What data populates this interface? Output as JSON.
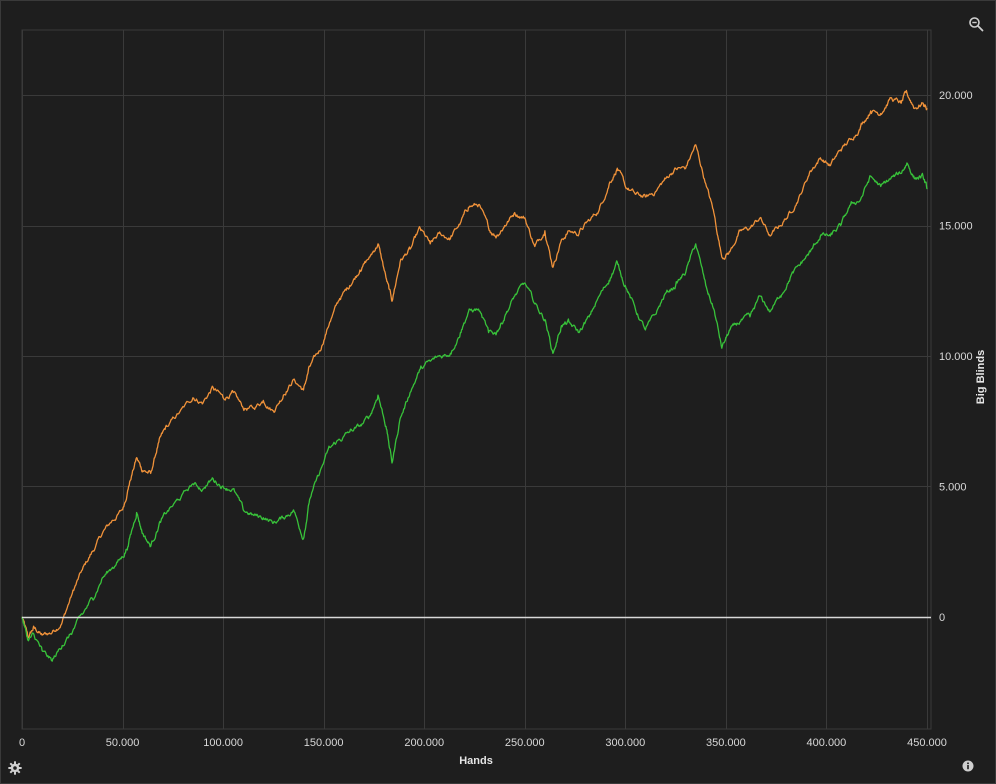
{
  "colors": {
    "background": "#1e1e1e",
    "grid": "#3a3a3a",
    "zero_line": "#d9d9d9",
    "orange": "#f0923a",
    "green": "#38c23a"
  },
  "icons": {
    "zoom": "magnifier-minus-icon",
    "settings": "gear-icon",
    "info": "info-icon"
  },
  "chart_data": {
    "type": "line",
    "xlabel": "Hands",
    "ylabel": "Big Blinds",
    "xlim": [
      0,
      452000
    ],
    "ylim": [
      -4300,
      22500
    ],
    "x_ticks": [
      0,
      50000,
      100000,
      150000,
      200000,
      250000,
      300000,
      350000,
      400000,
      450000
    ],
    "x_tick_labels": [
      "0",
      "50.000",
      "100.000",
      "150.000",
      "200.000",
      "250.000",
      "300.000",
      "350.000",
      "400.000",
      "450.000"
    ],
    "y_ticks": [
      0,
      5000,
      10000,
      15000,
      20000
    ],
    "y_tick_labels": [
      "0",
      "5.000",
      "10.000",
      "15.000",
      "20.000"
    ],
    "grid": true,
    "legend": "none",
    "reference_line": 0,
    "series": [
      {
        "color": "#f0923a",
        "x": [
          0,
          3000,
          6000,
          10000,
          15000,
          20000,
          25000,
          30000,
          35000,
          40000,
          45000,
          50000,
          53000,
          57000,
          60000,
          64000,
          68000,
          72000,
          78000,
          85000,
          90000,
          95000,
          100000,
          105000,
          110000,
          115000,
          120000,
          125000,
          130000,
          135000,
          140000,
          143000,
          148000,
          153000,
          158000,
          163000,
          168000,
          173000,
          177000,
          181000,
          184000,
          188000,
          193000,
          198000,
          203000,
          208000,
          213000,
          218000,
          222000,
          227000,
          232000,
          236000,
          240000,
          245000,
          250000,
          255000,
          260000,
          264000,
          268000,
          272000,
          277000,
          282000,
          287000,
          292000,
          296000,
          300000,
          305000,
          310000,
          315000,
          320000,
          325000,
          330000,
          335000,
          340000,
          344000,
          348000,
          352000,
          357000,
          362000,
          367000,
          372000,
          377000,
          382000,
          387000,
          392000,
          397000,
          402000,
          407000,
          412000,
          417000,
          422000,
          427000,
          432000,
          437000,
          440000,
          444000,
          448000,
          450000
        ],
        "y": [
          0,
          -800,
          -400,
          -700,
          -600,
          -200,
          900,
          1800,
          2500,
          3200,
          3700,
          4100,
          5000,
          6100,
          5600,
          5500,
          6700,
          7300,
          7800,
          8400,
          8200,
          8800,
          8400,
          8600,
          8000,
          8000,
          8300,
          7900,
          8500,
          9100,
          8700,
          9600,
          10200,
          11300,
          12200,
          12700,
          13300,
          13800,
          14300,
          13000,
          12100,
          13600,
          14100,
          14900,
          14300,
          14700,
          14500,
          15100,
          15700,
          15800,
          14900,
          14600,
          15000,
          15500,
          15300,
          14200,
          14800,
          13400,
          14400,
          14800,
          14700,
          15200,
          15600,
          16600,
          17200,
          16500,
          16200,
          16100,
          16300,
          16800,
          17200,
          17200,
          18100,
          16600,
          15500,
          13800,
          14000,
          14800,
          14900,
          15300,
          14600,
          15000,
          15500,
          16200,
          17100,
          17600,
          17300,
          17900,
          18300,
          18800,
          19400,
          19300,
          19900,
          19700,
          20100,
          19500,
          19700,
          19500
        ]
      },
      {
        "color": "#38c23a",
        "x": [
          0,
          3000,
          6000,
          10000,
          15000,
          20000,
          25000,
          30000,
          35000,
          40000,
          45000,
          50000,
          53000,
          57000,
          60000,
          64000,
          68000,
          72000,
          78000,
          85000,
          90000,
          95000,
          100000,
          105000,
          110000,
          115000,
          120000,
          125000,
          130000,
          135000,
          140000,
          143000,
          148000,
          153000,
          158000,
          163000,
          168000,
          173000,
          177000,
          181000,
          184000,
          188000,
          193000,
          198000,
          203000,
          208000,
          213000,
          218000,
          222000,
          227000,
          232000,
          236000,
          240000,
          245000,
          250000,
          255000,
          260000,
          264000,
          268000,
          272000,
          277000,
          282000,
          287000,
          292000,
          296000,
          300000,
          305000,
          310000,
          315000,
          320000,
          325000,
          330000,
          335000,
          340000,
          344000,
          348000,
          352000,
          357000,
          362000,
          367000,
          372000,
          377000,
          382000,
          387000,
          392000,
          397000,
          402000,
          407000,
          412000,
          417000,
          422000,
          427000,
          432000,
          437000,
          440000,
          444000,
          448000,
          450000
        ],
        "y": [
          0,
          -900,
          -700,
          -1300,
          -1700,
          -1100,
          -600,
          100,
          700,
          1500,
          1900,
          2300,
          2800,
          4000,
          3200,
          2700,
          3500,
          4000,
          4500,
          5100,
          4900,
          5300,
          5000,
          4900,
          4100,
          3900,
          3800,
          3600,
          3800,
          4100,
          3000,
          4500,
          5500,
          6500,
          6800,
          7100,
          7300,
          7700,
          8500,
          7300,
          5900,
          7600,
          8600,
          9500,
          9800,
          10000,
          10100,
          10900,
          11700,
          11800,
          10900,
          10900,
          11500,
          12300,
          12800,
          12000,
          11400,
          10100,
          11100,
          11300,
          10900,
          11500,
          12300,
          12900,
          13600,
          12700,
          11800,
          11000,
          11600,
          12400,
          12700,
          13200,
          14300,
          12700,
          11800,
          10300,
          11000,
          11300,
          11500,
          12300,
          11700,
          12300,
          13000,
          13500,
          14000,
          14600,
          14600,
          15000,
          15800,
          16000,
          16900,
          16500,
          16800,
          17000,
          17400,
          16800,
          16900,
          16400
        ]
      }
    ]
  }
}
